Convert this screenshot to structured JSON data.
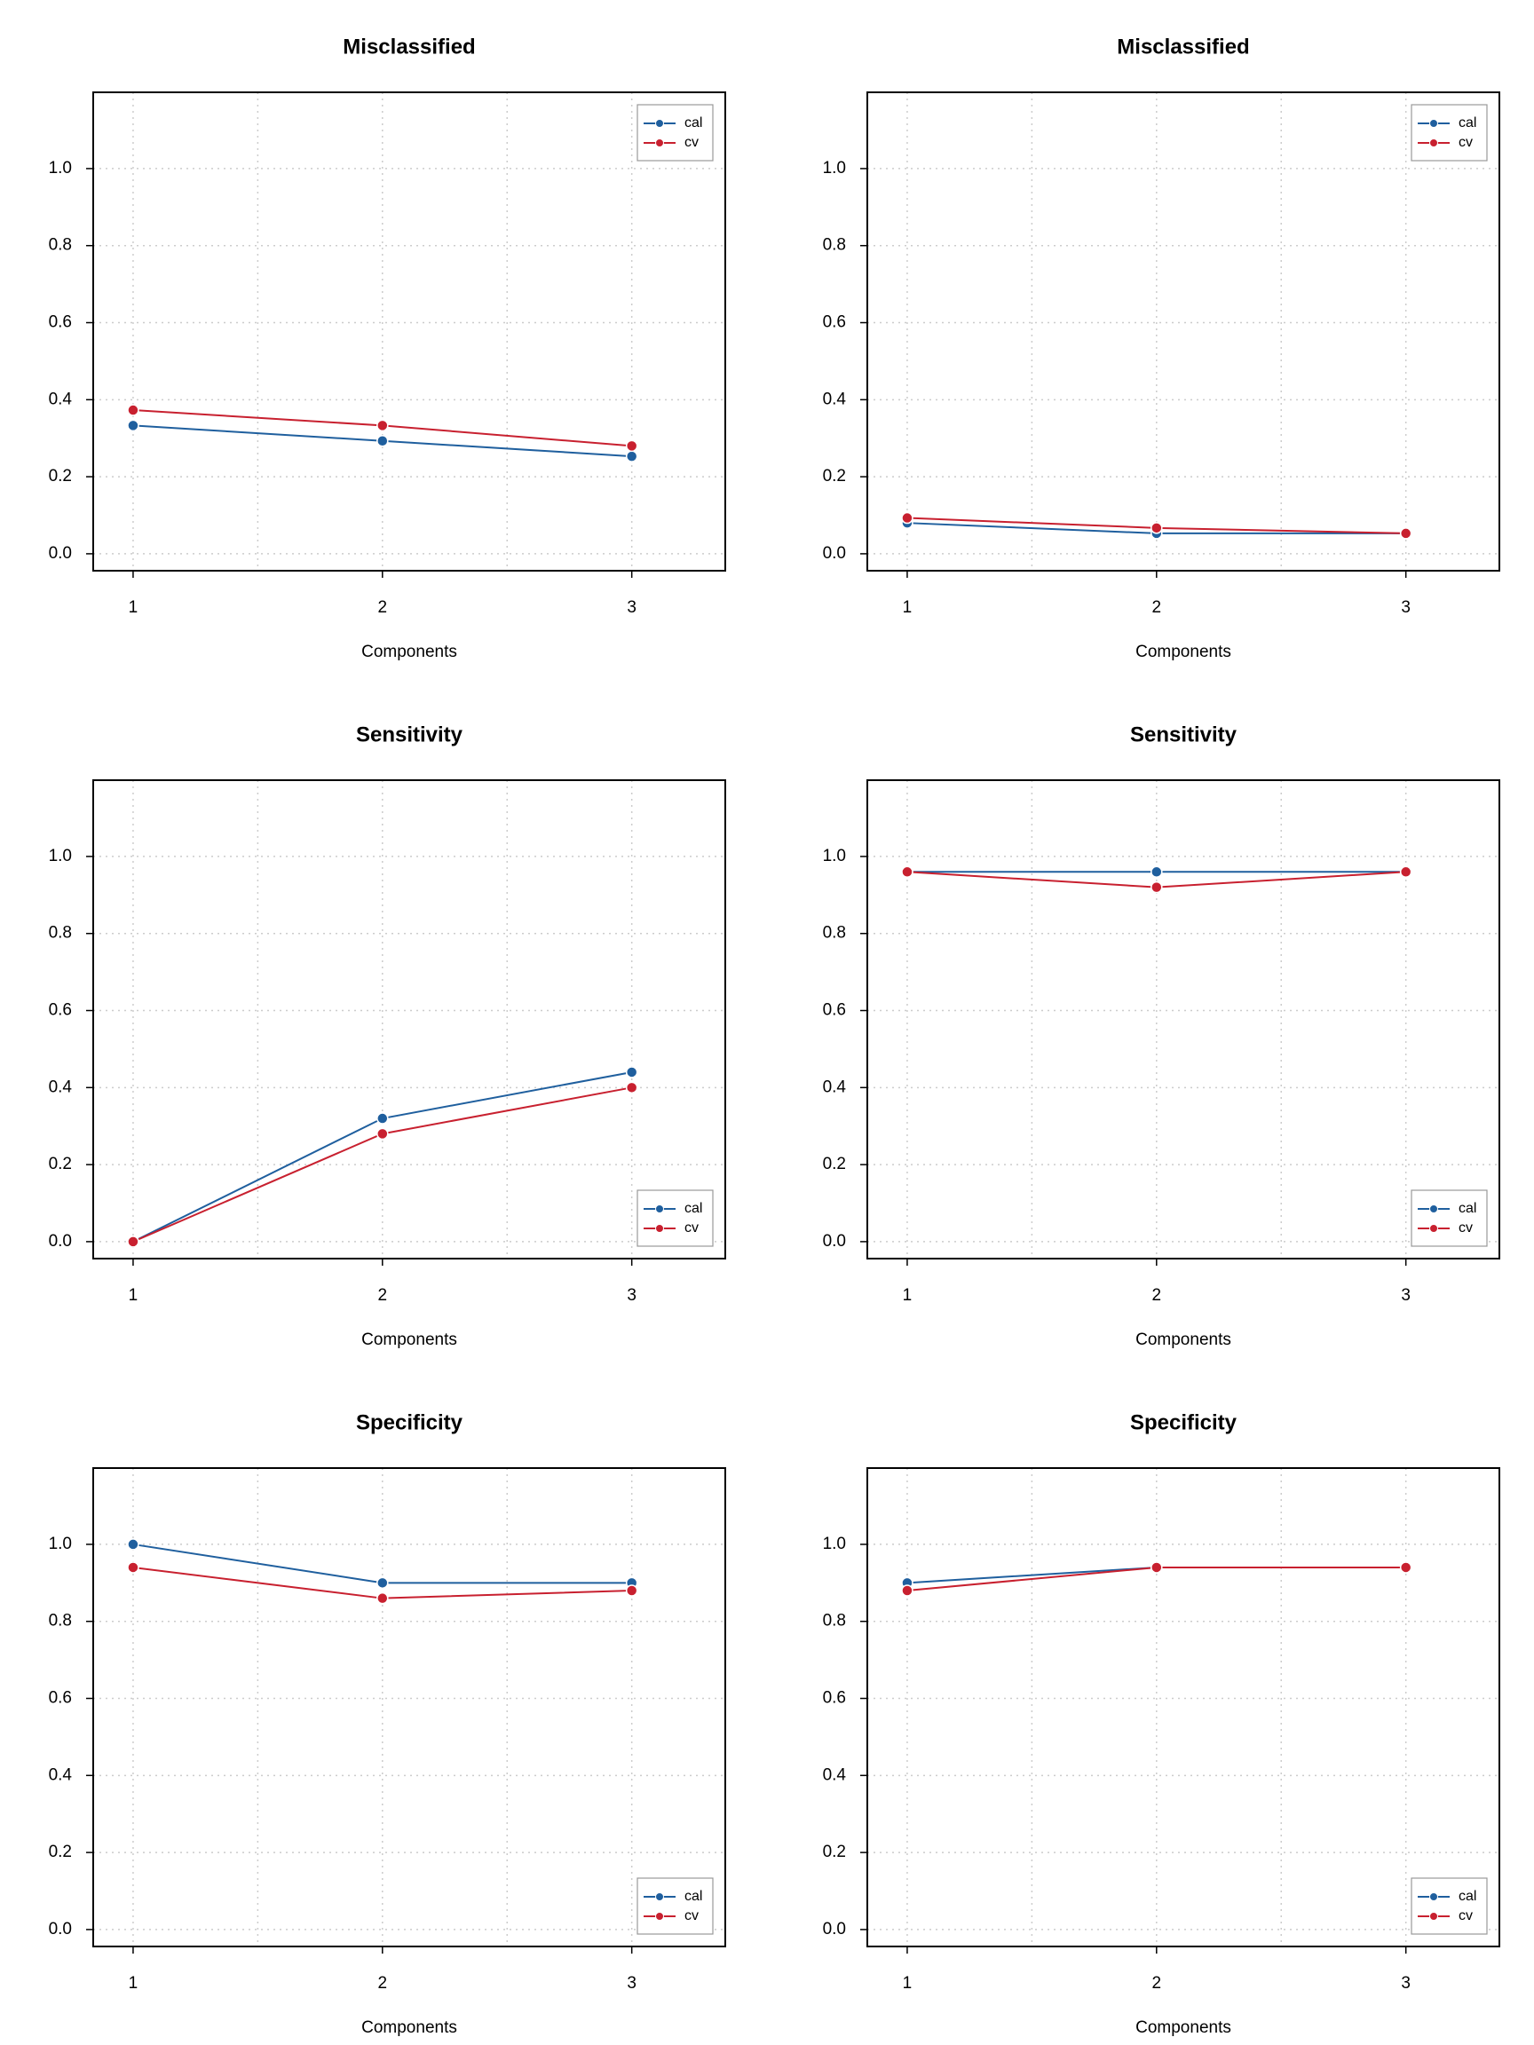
{
  "chart_data": [
    {
      "type": "line",
      "title": "Misclassified",
      "xlabel": "Components",
      "x": [
        1,
        2,
        3
      ],
      "xlim": [
        0.84,
        3.375
      ],
      "xticks": [
        1,
        2,
        3
      ],
      "xgrid": [
        1,
        1.5,
        2,
        2.5,
        3
      ],
      "ylim": [
        -0.044,
        1.198
      ],
      "yticks": [
        {
          "value": 0,
          "label": "0.0"
        },
        0.2,
        0.4,
        0.6,
        0.8,
        {
          "value": 1,
          "label": "1.0"
        }
      ],
      "grid": true,
      "legend": "upper right",
      "series": [
        {
          "name": "cal",
          "color": "#1f5f9e",
          "values": [
            0.333,
            0.293,
            0.253
          ]
        },
        {
          "name": "cv",
          "color": "#c8202f",
          "values": [
            0.373,
            0.333,
            0.28
          ]
        }
      ]
    },
    {
      "type": "line",
      "title": "Misclassified",
      "xlabel": "Components",
      "x": [
        1,
        2,
        3
      ],
      "xlim": [
        0.84,
        3.375
      ],
      "xticks": [
        1,
        2,
        3
      ],
      "xgrid": [
        1,
        1.5,
        2,
        2.5,
        3
      ],
      "ylim": [
        -0.044,
        1.198
      ],
      "yticks": [
        {
          "value": 0,
          "label": "0.0"
        },
        0.2,
        0.4,
        0.6,
        0.8,
        {
          "value": 1,
          "label": "1.0"
        }
      ],
      "grid": true,
      "legend": "upper right",
      "series": [
        {
          "name": "cal",
          "color": "#1f5f9e",
          "values": [
            0.08,
            0.053,
            0.053
          ]
        },
        {
          "name": "cv",
          "color": "#c8202f",
          "values": [
            0.093,
            0.067,
            0.053
          ]
        }
      ]
    },
    {
      "type": "line",
      "title": "Sensitivity",
      "xlabel": "Components",
      "x": [
        1,
        2,
        3
      ],
      "xlim": [
        0.84,
        3.375
      ],
      "xticks": [
        1,
        2,
        3
      ],
      "xgrid": [
        1,
        1.5,
        2,
        2.5,
        3
      ],
      "ylim": [
        -0.044,
        1.198
      ],
      "yticks": [
        {
          "value": 0,
          "label": "0.0"
        },
        0.2,
        0.4,
        0.6,
        0.8,
        {
          "value": 1,
          "label": "1.0"
        }
      ],
      "grid": true,
      "legend": "lower right",
      "series": [
        {
          "name": "cal",
          "color": "#1f5f9e",
          "values": [
            0,
            0.32,
            0.44
          ]
        },
        {
          "name": "cv",
          "color": "#c8202f",
          "values": [
            0,
            0.28,
            0.4
          ]
        }
      ]
    },
    {
      "type": "line",
      "title": "Sensitivity",
      "xlabel": "Components",
      "x": [
        1,
        2,
        3
      ],
      "xlim": [
        0.84,
        3.375
      ],
      "xticks": [
        1,
        2,
        3
      ],
      "xgrid": [
        1,
        1.5,
        2,
        2.5,
        3
      ],
      "ylim": [
        -0.044,
        1.198
      ],
      "yticks": [
        {
          "value": 0,
          "label": "0.0"
        },
        0.2,
        0.4,
        0.6,
        0.8,
        {
          "value": 1,
          "label": "1.0"
        }
      ],
      "grid": true,
      "legend": "lower right",
      "series": [
        {
          "name": "cal",
          "color": "#1f5f9e",
          "values": [
            0.96,
            0.96,
            0.96
          ]
        },
        {
          "name": "cv",
          "color": "#c8202f",
          "values": [
            0.96,
            0.92,
            0.96
          ]
        }
      ]
    },
    {
      "type": "line",
      "title": "Specificity",
      "xlabel": "Components",
      "x": [
        1,
        2,
        3
      ],
      "xlim": [
        0.84,
        3.375
      ],
      "xticks": [
        1,
        2,
        3
      ],
      "xgrid": [
        1,
        1.5,
        2,
        2.5,
        3
      ],
      "ylim": [
        -0.044,
        1.198
      ],
      "yticks": [
        {
          "value": 0,
          "label": "0.0"
        },
        0.2,
        0.4,
        0.6,
        0.8,
        {
          "value": 1,
          "label": "1.0"
        }
      ],
      "grid": true,
      "legend": "lower right",
      "series": [
        {
          "name": "cal",
          "color": "#1f5f9e",
          "values": [
            1,
            0.9,
            0.9
          ]
        },
        {
          "name": "cv",
          "color": "#c8202f",
          "values": [
            0.94,
            0.86,
            0.88
          ]
        }
      ]
    },
    {
      "type": "line",
      "title": "Specificity",
      "xlabel": "Components",
      "x": [
        1,
        2,
        3
      ],
      "xlim": [
        0.84,
        3.375
      ],
      "xticks": [
        1,
        2,
        3
      ],
      "xgrid": [
        1,
        1.5,
        2,
        2.5,
        3
      ],
      "ylim": [
        -0.044,
        1.198
      ],
      "yticks": [
        {
          "value": 0,
          "label": "0.0"
        },
        0.2,
        0.4,
        0.6,
        0.8,
        {
          "value": 1,
          "label": "1.0"
        }
      ],
      "grid": true,
      "legend": "lower right",
      "series": [
        {
          "name": "cal",
          "color": "#1f5f9e",
          "values": [
            0.9,
            0.94,
            0.94
          ]
        },
        {
          "name": "cv",
          "color": "#c8202f",
          "values": [
            0.88,
            0.94,
            0.94
          ]
        }
      ]
    }
  ]
}
